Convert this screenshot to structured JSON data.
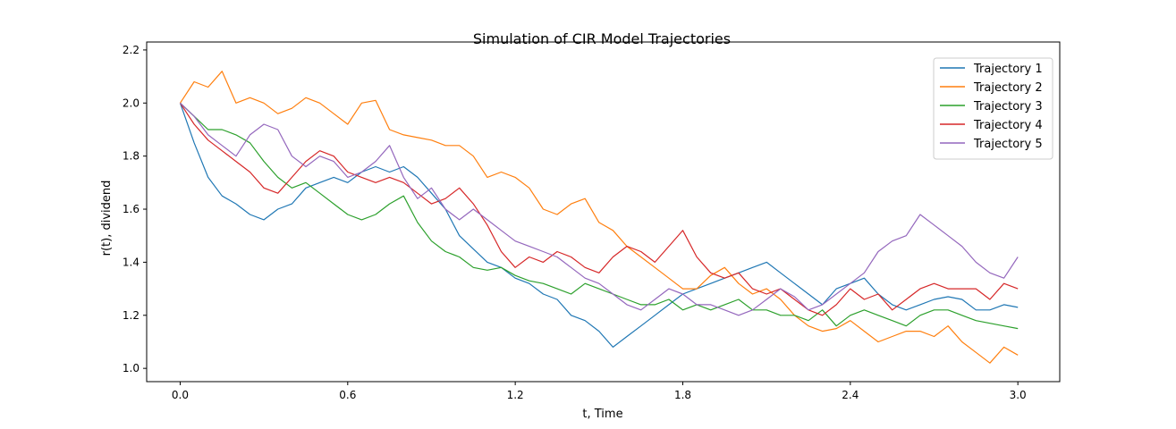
{
  "chart_data": {
    "type": "line",
    "title": "Simulation of CIR Model Trajectories",
    "xlabel": "t, Time",
    "ylabel": "r(t), dividend",
    "xlim": [
      -0.12,
      3.15
    ],
    "ylim": [
      0.95,
      2.23
    ],
    "xticks": [
      0.0,
      0.6,
      1.2,
      1.8,
      2.4,
      3.0
    ],
    "xtick_labels": [
      "0.0",
      "0.6",
      "1.2",
      "1.8",
      "2.4",
      "3.0"
    ],
    "yticks": [
      1.0,
      1.2,
      1.4,
      1.6,
      1.8,
      2.0,
      2.2
    ],
    "ytick_labels": [
      "1.0",
      "1.2",
      "1.4",
      "1.6",
      "1.8",
      "2.0",
      "2.2"
    ],
    "grid": false,
    "legend_position": "top-right",
    "x": [
      0.0,
      0.05,
      0.1,
      0.15,
      0.2,
      0.25,
      0.3,
      0.35,
      0.4,
      0.45,
      0.5,
      0.55,
      0.6,
      0.65,
      0.7,
      0.75,
      0.8,
      0.85,
      0.9,
      0.95,
      1.0,
      1.05,
      1.1,
      1.15,
      1.2,
      1.25,
      1.3,
      1.35,
      1.4,
      1.45,
      1.5,
      1.55,
      1.6,
      1.65,
      1.7,
      1.75,
      1.8,
      1.85,
      1.9,
      1.95,
      2.0,
      2.05,
      2.1,
      2.15,
      2.2,
      2.25,
      2.3,
      2.35,
      2.4,
      2.45,
      2.5,
      2.55,
      2.6,
      2.65,
      2.7,
      2.75,
      2.8,
      2.85,
      2.9,
      2.95,
      3.0
    ],
    "series": [
      {
        "name": "Trajectory 1",
        "color": "#1f77b4",
        "values": [
          2.0,
          1.85,
          1.72,
          1.65,
          1.62,
          1.58,
          1.56,
          1.6,
          1.62,
          1.68,
          1.7,
          1.72,
          1.7,
          1.74,
          1.76,
          1.74,
          1.76,
          1.72,
          1.66,
          1.6,
          1.5,
          1.45,
          1.4,
          1.38,
          1.34,
          1.32,
          1.28,
          1.26,
          1.2,
          1.18,
          1.14,
          1.08,
          1.12,
          1.16,
          1.2,
          1.24,
          1.28,
          1.3,
          1.32,
          1.34,
          1.36,
          1.38,
          1.4,
          1.36,
          1.32,
          1.28,
          1.24,
          1.3,
          1.32,
          1.34,
          1.28,
          1.24,
          1.22,
          1.24,
          1.26,
          1.27,
          1.26,
          1.22,
          1.22,
          1.24,
          1.23
        ]
      },
      {
        "name": "Trajectory 2",
        "color": "#ff7f0e",
        "values": [
          2.0,
          2.08,
          2.06,
          2.12,
          2.0,
          2.02,
          2.0,
          1.96,
          1.98,
          2.02,
          2.0,
          1.96,
          1.92,
          2.0,
          2.01,
          1.9,
          1.88,
          1.87,
          1.86,
          1.84,
          1.84,
          1.8,
          1.72,
          1.74,
          1.72,
          1.68,
          1.6,
          1.58,
          1.62,
          1.64,
          1.55,
          1.52,
          1.46,
          1.42,
          1.38,
          1.34,
          1.3,
          1.3,
          1.35,
          1.38,
          1.32,
          1.28,
          1.3,
          1.26,
          1.2,
          1.16,
          1.14,
          1.15,
          1.18,
          1.14,
          1.1,
          1.12,
          1.14,
          1.14,
          1.12,
          1.16,
          1.1,
          1.06,
          1.02,
          1.08,
          1.05
        ]
      },
      {
        "name": "Trajectory 3",
        "color": "#2ca02c",
        "values": [
          2.0,
          1.95,
          1.9,
          1.9,
          1.88,
          1.85,
          1.78,
          1.72,
          1.68,
          1.7,
          1.66,
          1.62,
          1.58,
          1.56,
          1.58,
          1.62,
          1.65,
          1.55,
          1.48,
          1.44,
          1.42,
          1.38,
          1.37,
          1.38,
          1.35,
          1.33,
          1.32,
          1.3,
          1.28,
          1.32,
          1.3,
          1.28,
          1.26,
          1.24,
          1.24,
          1.26,
          1.22,
          1.24,
          1.22,
          1.24,
          1.26,
          1.22,
          1.22,
          1.2,
          1.2,
          1.18,
          1.22,
          1.16,
          1.2,
          1.22,
          1.2,
          1.18,
          1.16,
          1.2,
          1.22,
          1.22,
          1.2,
          1.18,
          1.17,
          1.16,
          1.15
        ]
      },
      {
        "name": "Trajectory 4",
        "color": "#d62728",
        "values": [
          2.0,
          1.92,
          1.86,
          1.82,
          1.78,
          1.74,
          1.68,
          1.66,
          1.72,
          1.78,
          1.82,
          1.8,
          1.74,
          1.72,
          1.7,
          1.72,
          1.7,
          1.66,
          1.62,
          1.64,
          1.68,
          1.62,
          1.54,
          1.44,
          1.38,
          1.42,
          1.4,
          1.44,
          1.42,
          1.38,
          1.36,
          1.42,
          1.46,
          1.44,
          1.4,
          1.46,
          1.52,
          1.42,
          1.36,
          1.34,
          1.36,
          1.3,
          1.28,
          1.3,
          1.26,
          1.22,
          1.2,
          1.24,
          1.3,
          1.26,
          1.28,
          1.22,
          1.26,
          1.3,
          1.32,
          1.3,
          1.3,
          1.3,
          1.26,
          1.32,
          1.3
        ]
      },
      {
        "name": "Trajectory 5",
        "color": "#9467bd",
        "values": [
          2.0,
          1.95,
          1.88,
          1.84,
          1.8,
          1.88,
          1.92,
          1.9,
          1.8,
          1.76,
          1.8,
          1.78,
          1.72,
          1.74,
          1.78,
          1.84,
          1.72,
          1.64,
          1.68,
          1.6,
          1.56,
          1.6,
          1.56,
          1.52,
          1.48,
          1.46,
          1.44,
          1.42,
          1.38,
          1.34,
          1.32,
          1.28,
          1.24,
          1.22,
          1.26,
          1.3,
          1.28,
          1.24,
          1.24,
          1.22,
          1.2,
          1.22,
          1.26,
          1.3,
          1.27,
          1.22,
          1.24,
          1.28,
          1.32,
          1.36,
          1.44,
          1.48,
          1.5,
          1.58,
          1.54,
          1.5,
          1.46,
          1.4,
          1.36,
          1.34,
          1.42
        ]
      }
    ]
  }
}
